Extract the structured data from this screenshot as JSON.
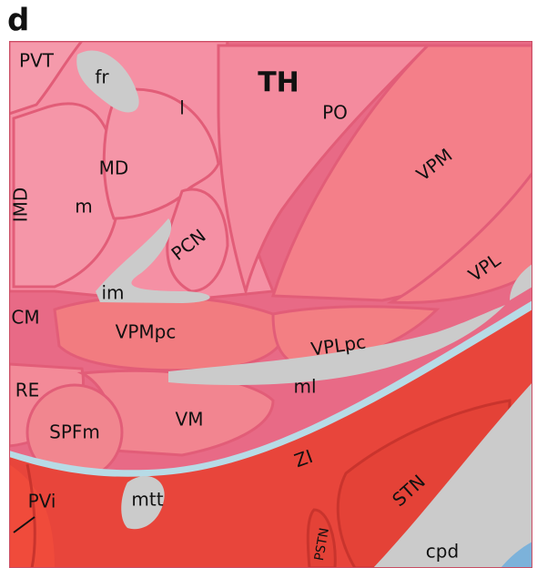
{
  "panel_label": "d",
  "labels": [
    "PVT",
    "fr",
    "TH",
    "l",
    "PO",
    "MD",
    "IMD",
    "m",
    "VPM",
    "PCN",
    "VPL",
    "im",
    "CM",
    "VPMpc",
    "VPLpc",
    "RE",
    "ml",
    "SPFm",
    "VM",
    "ZI",
    "PVi",
    "mtt",
    "STN",
    "PSTN",
    "cpd"
  ]
}
